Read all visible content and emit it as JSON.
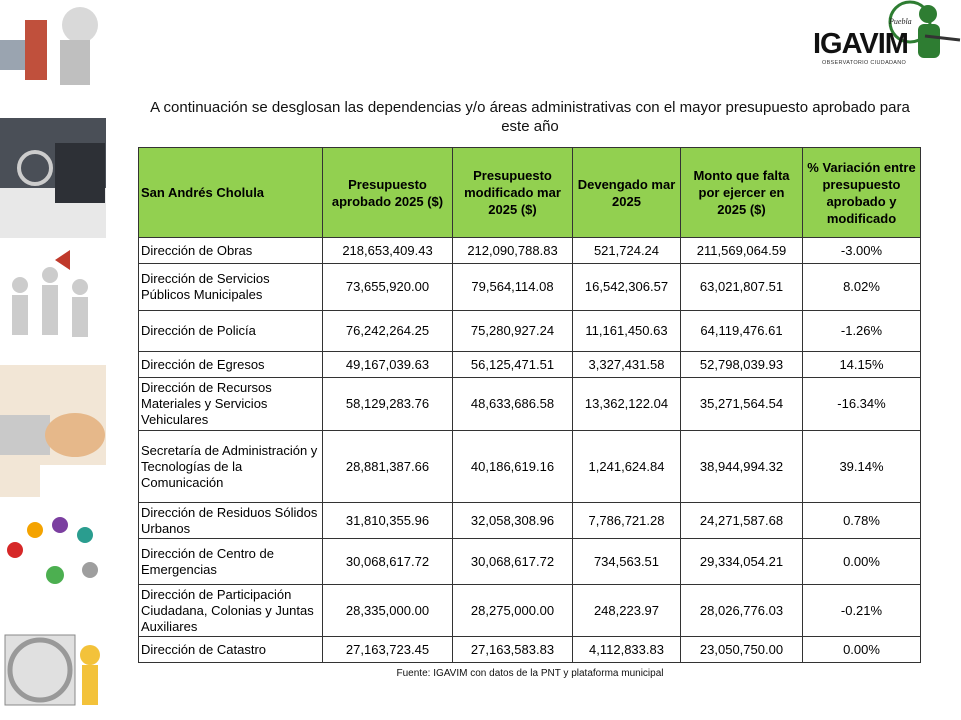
{
  "logo": {
    "city": "Puebla",
    "name": "IGAVIM",
    "subtitle": "OBSERVATORIO CIUDADANO"
  },
  "title": "A continuación se desglosan las dependencias y/o áreas administrativas con el mayor presupuesto aprobado para este año",
  "table": {
    "headers": [
      "San Andrés Cholula",
      "Presupuesto aprobado 2025 ($)",
      "Presupuesto modificado mar 2025 ($)",
      "Devengado mar 2025",
      "Monto que falta por ejercer en 2025 ($)",
      "% Variación entre presupuesto aprobado y modificado"
    ],
    "rows": [
      [
        "Dirección de Obras",
        "218,653,409.43",
        "212,090,788.83",
        "521,724.24",
        "211,569,064.59",
        "-3.00%"
      ],
      [
        "Dirección de Servicios Públicos Municipales",
        "73,655,920.00",
        "79,564,114.08",
        "16,542,306.57",
        "63,021,807.51",
        "8.02%"
      ],
      [
        "Dirección de Policía",
        "76,242,264.25",
        "75,280,927.24",
        "11,161,450.63",
        "64,119,476.61",
        "-1.26%"
      ],
      [
        "Dirección de Egresos",
        "49,167,039.63",
        "56,125,471.51",
        "3,327,431.58",
        "52,798,039.93",
        "14.15%"
      ],
      [
        "Dirección de Recursos Materiales y Servicios Vehiculares",
        "58,129,283.76",
        "48,633,686.58",
        "13,362,122.04",
        "35,271,564.54",
        "-16.34%"
      ],
      [
        "Secretaría de Administración y Tecnologías de la Comunicación",
        "28,881,387.66",
        "40,186,619.16",
        "1,241,624.84",
        "38,944,994.32",
        "39.14%"
      ],
      [
        "Dirección de Residuos Sólidos Urbanos",
        "31,810,355.96",
        "32,058,308.96",
        "7,786,721.28",
        "24,271,587.68",
        "0.78%"
      ],
      [
        "Dirección de Centro de Emergencias",
        "30,068,617.72",
        "30,068,617.72",
        "734,563.51",
        "29,334,054.21",
        "0.00%"
      ],
      [
        "Dirección de Participación Ciudadana, Colonias y Juntas Auxiliares",
        "28,335,000.00",
        "28,275,000.00",
        "248,223.97",
        "28,026,776.03",
        "-0.21%"
      ],
      [
        "Dirección de Catastro",
        "27,163,723.45",
        "27,163,583.83",
        "4,112,833.83",
        "23,050,750.00",
        "0.00%"
      ]
    ]
  },
  "source": "Fuente: IGAVIM  con datos de la PNT  y plataforma municipal"
}
